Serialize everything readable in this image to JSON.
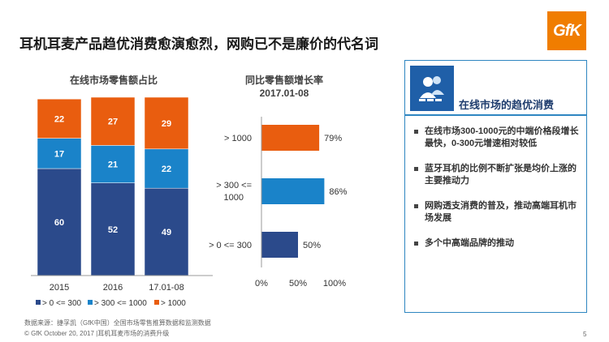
{
  "title": "耳机耳麦产品趋优消费愈演愈烈，网购已不是廉价的代名词",
  "logo_text": "GfK",
  "colors": {
    "dark_blue": "#2b4a8b",
    "mid_blue": "#1a83c9",
    "orange": "#e95d0f",
    "accent": "#2e86c1"
  },
  "chart_data": [
    {
      "type": "bar",
      "stacked": true,
      "title": "在线市场零售额占比",
      "categories": [
        "2015",
        "2016",
        "17.01-08"
      ],
      "series": [
        {
          "name": "> 0 <= 300",
          "values": [
            60,
            52,
            49
          ],
          "color": "#2b4a8b"
        },
        {
          "name": "> 300 <= 1000",
          "values": [
            17,
            21,
            22
          ],
          "color": "#1a83c9"
        },
        {
          "name": "> 1000",
          "values": [
            22,
            27,
            29
          ],
          "color": "#e95d0f"
        }
      ],
      "ylim": [
        0,
        100
      ],
      "legend_position": "bottom"
    },
    {
      "type": "bar",
      "orientation": "horizontal",
      "title": "同比零售额增长率",
      "subtitle": "2017.01-08",
      "categories": [
        "> 1000",
        "> 300 <= 1000",
        "> 0 <= 300"
      ],
      "values": [
        79,
        86,
        50
      ],
      "value_labels": [
        "79%",
        "86%",
        "50%"
      ],
      "colors": [
        "#e95d0f",
        "#1a83c9",
        "#2b4a8b"
      ],
      "xlim": [
        0,
        100
      ],
      "x_ticks": [
        "0%",
        "50%",
        "100%"
      ]
    }
  ],
  "panel": {
    "heading": "在线市场的趋优消费",
    "icon": "people-icon",
    "bullets": [
      "在线市场300-1000元的中端价格段增长最快，0-300元增速相对较低",
      "蓝牙耳机的比例不断扩张是均价上涨的主要推动力",
      "网购透支消费的普及，推动高端耳机市场发展",
      "多个中高端品牌的推动"
    ]
  },
  "footer": {
    "source": "数据来源：捷孚凯（GfK中国）全国市场零售推算数据和监测数据",
    "copyright": "© GfK October 20, 2017 |耳机耳麦市场的消费升级",
    "page": "5"
  }
}
